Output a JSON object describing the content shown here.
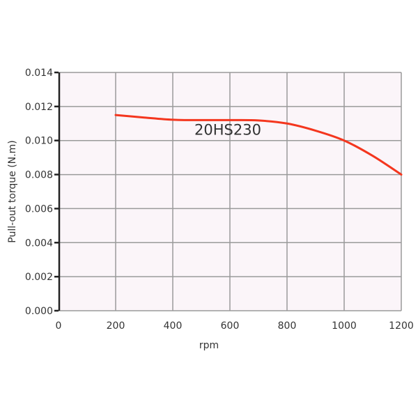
{
  "chart_data": {
    "type": "line",
    "title": "",
    "xlabel": "rpm",
    "ylabel": "Pull-out torque  (N.m)",
    "xlim": [
      0,
      1200
    ],
    "ylim": [
      0,
      0.014
    ],
    "x_ticks": [
      "0",
      "200",
      "400",
      "600",
      "800",
      "1000",
      "1200"
    ],
    "y_ticks": [
      "0.000",
      "0.002",
      "0.004",
      "0.006",
      "0.008",
      "0.010",
      "0.012",
      "0.014"
    ],
    "grid": true,
    "legend": "none",
    "plot_background": "#fbf5f9",
    "grid_color": "#9a9a9a",
    "series": [
      {
        "name": "20HS230",
        "color": "#f4361e",
        "x": [
          200,
          300,
          400,
          500,
          600,
          700,
          800,
          900,
          1000,
          1100,
          1200
        ],
        "y": [
          0.0115,
          0.01135,
          0.01122,
          0.0112,
          0.0112,
          0.01118,
          0.011,
          0.01058,
          0.01,
          0.0091,
          0.008
        ]
      }
    ],
    "annotations": [
      {
        "text": "20HS230",
        "x": 590,
        "y": 0.0105
      }
    ]
  }
}
